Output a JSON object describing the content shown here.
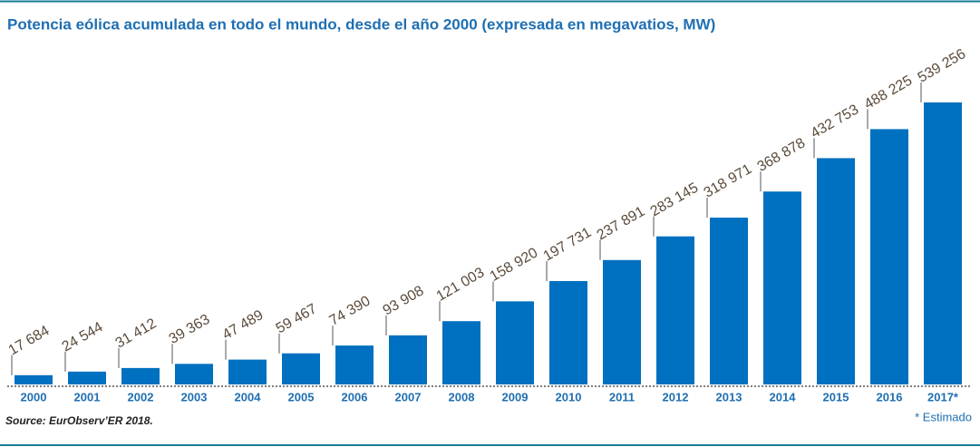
{
  "chart_data": {
    "type": "bar",
    "title": "Potencia eólica acumulada en todo el mundo, desde el año 2000 (expresada en megavatios, MW)",
    "categories": [
      "2000",
      "2001",
      "2002",
      "2003",
      "2004",
      "2005",
      "2006",
      "2007",
      "2008",
      "2009",
      "2010",
      "2011",
      "2012",
      "2013",
      "2014",
      "2015",
      "2016",
      "2017*"
    ],
    "values": [
      17684,
      24544,
      31412,
      39363,
      47489,
      59467,
      74390,
      93908,
      121003,
      158920,
      197731,
      237891,
      283145,
      318971,
      368878,
      432753,
      488225,
      539256
    ],
    "value_labels": [
      "17 684",
      "24 544",
      "31 412",
      "39 363",
      "47 489",
      "59 467",
      "74 390",
      "93 908",
      "121 003",
      "158 920",
      "197 731",
      "237 891",
      "283 145",
      "318 971",
      "368 878",
      "432 753",
      "488 225",
      "539 256"
    ],
    "color": "#0070c0",
    "source": "Source: EurObserv’ER 2018.",
    "note": "* Estimado"
  }
}
